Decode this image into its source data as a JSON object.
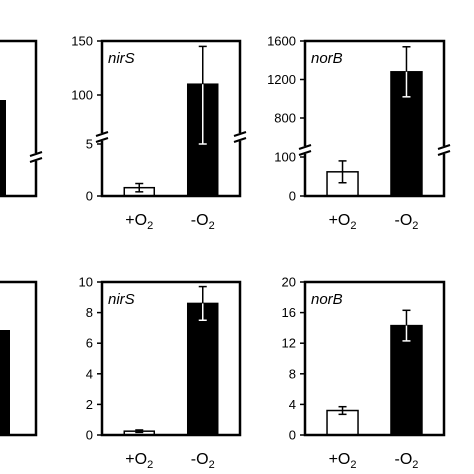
{
  "chart_data": [
    {
      "type": "bar",
      "annotation": "",
      "categories": [],
      "tick_labels": [],
      "values": [],
      "axis_break": true,
      "partial": true
    },
    {
      "type": "bar",
      "annotation": "nirS",
      "categories": [
        "+O2",
        "-O2"
      ],
      "values": [
        0.8,
        110
      ],
      "errors": [
        0.4,
        35
      ],
      "tick_labels": [
        "0",
        "5",
        "100",
        "150"
      ],
      "axis_break": true,
      "ylim": [
        0,
        150
      ]
    },
    {
      "type": "bar",
      "annotation": "norB",
      "categories": [
        "+O2",
        "-O2"
      ],
      "values": [
        62,
        1280
      ],
      "errors": [
        28,
        260
      ],
      "tick_labels": [
        "0",
        "100",
        "800",
        "1200",
        "1600"
      ],
      "axis_break": true,
      "ylim": [
        0,
        1600
      ]
    },
    {
      "type": "bar",
      "annotation": "",
      "categories": [],
      "tick_labels": [],
      "values": [],
      "axis_break": false,
      "partial": true
    },
    {
      "type": "bar",
      "annotation": "nirS",
      "categories": [
        "+O2",
        "-O2"
      ],
      "values": [
        0.25,
        8.6
      ],
      "errors": [
        0.08,
        1.1
      ],
      "tick_labels": [
        "0",
        "2",
        "4",
        "6",
        "8",
        "10"
      ],
      "axis_break": false,
      "ylim": [
        0,
        10
      ]
    },
    {
      "type": "bar",
      "annotation": "norB",
      "categories": [
        "+O2",
        "-O2"
      ],
      "values": [
        3.2,
        14.3
      ],
      "errors": [
        0.5,
        2.0
      ],
      "tick_labels": [
        "0",
        "4",
        "8",
        "12",
        "16",
        "20"
      ],
      "axis_break": false,
      "ylim": [
        0,
        20
      ]
    }
  ],
  "colors": {
    "filled": "#000000",
    "empty": "#ffffff",
    "axis": "#000000"
  }
}
